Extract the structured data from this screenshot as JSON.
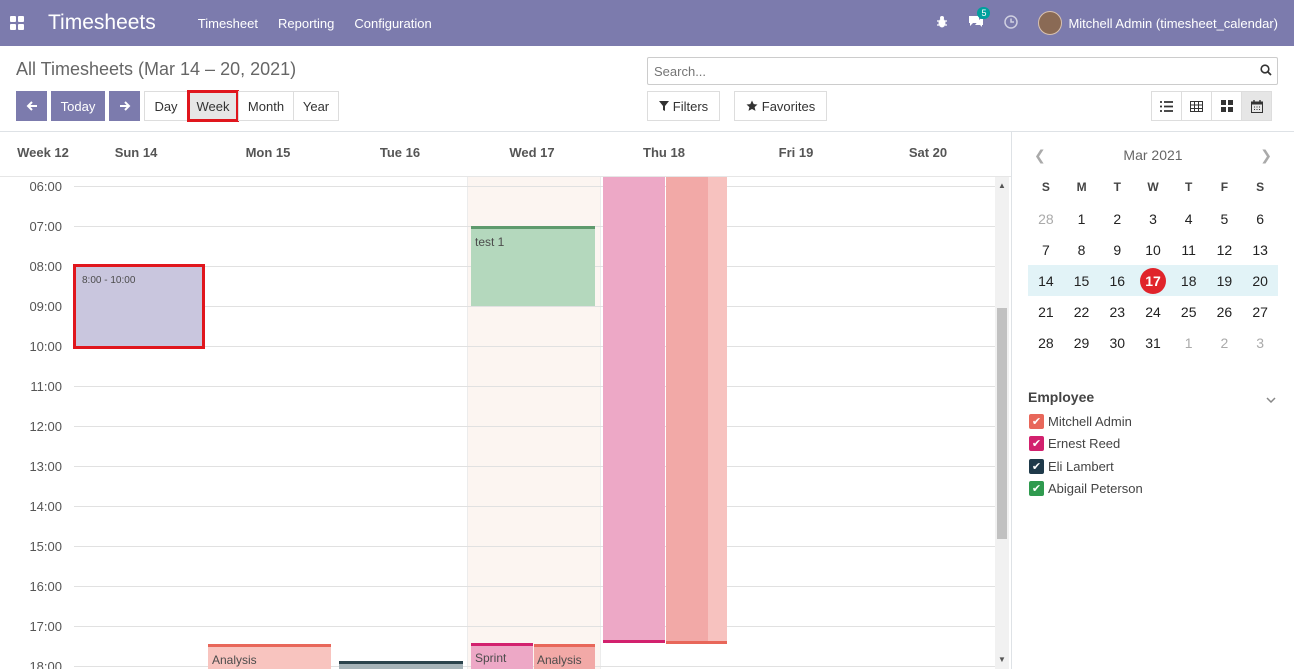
{
  "navbar": {
    "brand": "Timesheets",
    "menu": [
      "Timesheet",
      "Reporting",
      "Configuration"
    ],
    "messages_count": "5",
    "user": "Mitchell Admin (timesheet_calendar)",
    "color": "#7c7bad"
  },
  "control": {
    "title": "All Timesheets (Mar 14 – 20, 2021)",
    "search_placeholder": "Search...",
    "today": "Today",
    "scales": [
      "Day",
      "Week",
      "Month",
      "Year"
    ],
    "active_scale": "Week",
    "filters": "Filters",
    "favorites": "Favorites",
    "views": [
      "list-icon",
      "grid-icon",
      "kanban-icon",
      "calendar-icon"
    ],
    "active_view": "calendar-icon"
  },
  "calendar": {
    "week_label": "Week 12",
    "days": [
      "Sun 14",
      "Mon 15",
      "Tue 16",
      "Wed 17",
      "Thu 18",
      "Fri 19",
      "Sat 20"
    ],
    "times": [
      "06:00",
      "07:00",
      "08:00",
      "09:00",
      "10:00",
      "11:00",
      "12:00",
      "13:00",
      "14:00",
      "15:00",
      "16:00",
      "17:00",
      "18:00"
    ],
    "events": {
      "sun_block": "8:00 - 10:00",
      "wed_test": "test 1",
      "mon_analysis": "Analysis",
      "wed_sprint": "Sprint",
      "wed_analysis": "Analysis"
    }
  },
  "mini_calendar": {
    "month": "Mar 2021",
    "dow": [
      "S",
      "M",
      "T",
      "W",
      "T",
      "F",
      "S"
    ],
    "weeks": [
      [
        "28",
        "1",
        "2",
        "3",
        "4",
        "5",
        "6"
      ],
      [
        "7",
        "8",
        "9",
        "10",
        "11",
        "12",
        "13"
      ],
      [
        "14",
        "15",
        "16",
        "17",
        "18",
        "19",
        "20"
      ],
      [
        "21",
        "22",
        "23",
        "24",
        "25",
        "26",
        "27"
      ],
      [
        "28",
        "29",
        "30",
        "31",
        "1",
        "2",
        "3"
      ]
    ],
    "today": "17"
  },
  "filters": {
    "title": "Employee",
    "items": [
      {
        "label": "Mitchell Admin",
        "color": "#e8675a"
      },
      {
        "label": "Ernest Reed",
        "color": "#d2216e"
      },
      {
        "label": "Eli Lambert",
        "color": "#1f3a4a"
      },
      {
        "label": "Abigail Peterson",
        "color": "#2f9a4f"
      }
    ]
  }
}
